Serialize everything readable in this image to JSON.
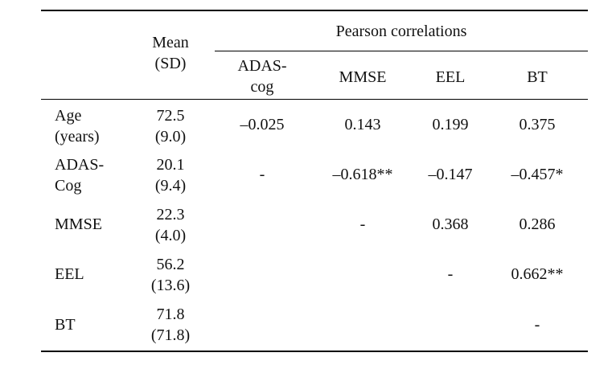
{
  "table": {
    "group_header": "Pearson correlations",
    "mean_header": [
      "Mean",
      "(SD)"
    ],
    "columns": [
      [
        "ADAS-",
        "cog"
      ],
      [
        "MMSE"
      ],
      [
        "EEL"
      ],
      [
        "BT"
      ]
    ],
    "rows": [
      {
        "label": [
          "Age",
          "(years)"
        ],
        "mean": [
          "72.5",
          "(9.0)"
        ],
        "values": [
          "–0.025",
          "0.143",
          "0.199",
          "0.375"
        ]
      },
      {
        "label": [
          "ADAS-",
          "Cog"
        ],
        "mean": [
          "20.1",
          "(9.4)"
        ],
        "values": [
          "-",
          "–0.618**",
          "–0.147",
          "–0.457*"
        ]
      },
      {
        "label": [
          "MMSE"
        ],
        "mean": [
          "22.3",
          "(4.0)"
        ],
        "values": [
          "",
          "-",
          "0.368",
          "0.286"
        ]
      },
      {
        "label": [
          "EEL"
        ],
        "mean": [
          "56.2",
          "(13.6)"
        ],
        "values": [
          "",
          "",
          "-",
          "0.662**"
        ]
      },
      {
        "label": [
          "BT"
        ],
        "mean": [
          "71.8",
          "(71.8)"
        ],
        "values": [
          "",
          "",
          "",
          "-"
        ]
      }
    ]
  }
}
